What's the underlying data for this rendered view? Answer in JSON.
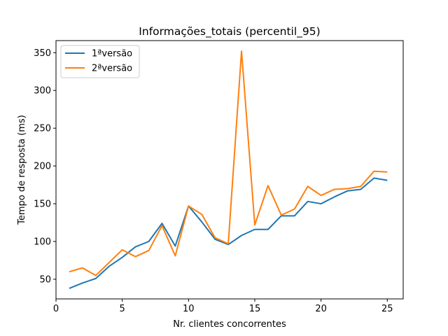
{
  "chart_data": {
    "type": "line",
    "title": "Informações_totais (percentil_95)",
    "xlabel": "Nr. clientes concorrentes",
    "ylabel": "Tempo de resposta (ms)",
    "xlim": [
      0,
      26.2
    ],
    "ylim": [
      24,
      366
    ],
    "x_ticks": [
      0,
      5,
      10,
      15,
      20,
      25
    ],
    "y_ticks": [
      50,
      100,
      150,
      200,
      250,
      300,
      350
    ],
    "grid": false,
    "legend_position": "top-left",
    "x": [
      1,
      2,
      3,
      4,
      5,
      6,
      7,
      8,
      9,
      10,
      11,
      12,
      13,
      14,
      15,
      16,
      17,
      18,
      19,
      20,
      21,
      22,
      23,
      24,
      25
    ],
    "series": [
      {
        "name": "1ªversão",
        "color": "#1f77b4",
        "values": [
          38,
          45,
          51,
          67,
          79,
          93,
          100,
          124,
          94,
          147,
          126,
          103,
          96,
          108,
          116,
          116,
          134,
          134,
          153,
          150,
          159,
          167,
          169,
          184,
          181
        ]
      },
      {
        "name": "2ªversão",
        "color": "#ff7f0e",
        "values": [
          60,
          65,
          55,
          72,
          89,
          80,
          88,
          121,
          81,
          147,
          136,
          105,
          97,
          352,
          122,
          174,
          135,
          143,
          173,
          161,
          169,
          170,
          173,
          193,
          192
        ]
      }
    ]
  }
}
